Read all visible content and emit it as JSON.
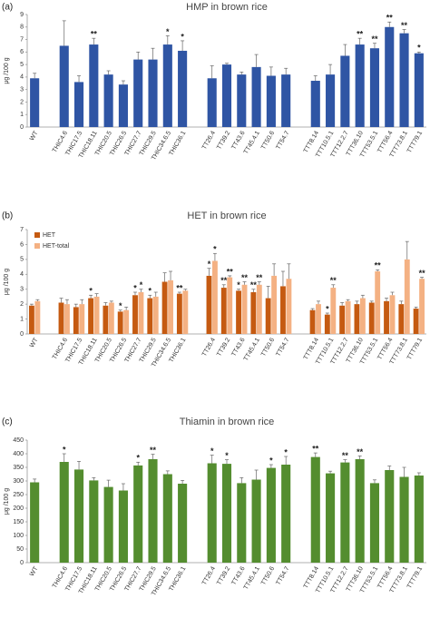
{
  "chart_data": [
    {
      "type": "bar",
      "panel": "(a)",
      "title": "HMP in brown rice",
      "y_label": "μg /100 g",
      "categories": [
        "WT",
        null,
        "THIC4.6",
        "THIC17.5",
        "THIC18.11",
        "THIC20.5",
        "THIC26.5",
        "THIC27.7",
        "THIC29.5",
        "THIC34.6.5",
        "THIC36.1",
        null,
        "TT26.4",
        "TT39.2",
        "TT43.6",
        "TT45.4.1",
        "TT50.6",
        "TT54.7",
        null,
        "TTT8.14",
        "TTT10.5.1",
        "TTT12.2.7",
        "TTT36.10",
        "TTT53.5.1",
        "TTT56.4",
        "TTT73.8.1",
        "TTT79.1"
      ],
      "values": [
        3.9,
        null,
        6.5,
        3.6,
        6.6,
        4.2,
        3.4,
        5.4,
        5.4,
        6.6,
        6.1,
        null,
        3.9,
        5.0,
        4.2,
        4.8,
        4.1,
        4.2,
        null,
        3.7,
        4.2,
        5.7,
        6.6,
        6.3,
        8.0,
        7.5,
        5.9
      ],
      "errors": [
        0.4,
        null,
        2.0,
        0.5,
        0.5,
        0.3,
        0.3,
        0.6,
        0.9,
        0.7,
        0.8,
        null,
        1.0,
        0.1,
        0.2,
        1.0,
        0.7,
        0.5,
        null,
        0.4,
        0.8,
        0.9,
        0.5,
        0.4,
        0.4,
        0.3,
        0.1
      ],
      "significance": [
        null,
        null,
        null,
        null,
        "**",
        null,
        null,
        null,
        null,
        "*",
        "*",
        null,
        null,
        null,
        null,
        null,
        null,
        null,
        null,
        null,
        null,
        null,
        "**",
        "**",
        "**",
        "**",
        "*"
      ],
      "color": "#2f55a4",
      "ylim": [
        0,
        9
      ],
      "yticks": [
        0,
        1,
        2,
        3,
        4,
        5,
        6,
        7,
        8,
        9
      ]
    },
    {
      "type": "bar",
      "panel": "(b)",
      "title": "HET in brown rice",
      "y_label": "μg /100 g",
      "categories": [
        "WT",
        null,
        "THIC4.6",
        "THIC17.5",
        "THIC18.11",
        "THIC20.5",
        "THIC26.5",
        "THIC27.7",
        "THIC29.5",
        "THIC34.6.5",
        "THIC36.1",
        null,
        "TT26.4",
        "TT39.2",
        "TT43.6",
        "TT45.4.1",
        "TT50.6",
        "TT54.7",
        null,
        "TTT8.14",
        "TTT10.5.1",
        "TTT12.2.7",
        "TTT36.10",
        "TTT53.5.1",
        "TTT56.4",
        "TTT73.8.1",
        "TTT79.1"
      ],
      "series": [
        {
          "name": "HET",
          "color": "#c55a11",
          "values": [
            1.9,
            null,
            2.1,
            1.8,
            2.4,
            1.9,
            1.5,
            2.6,
            2.4,
            3.5,
            2.7,
            null,
            3.9,
            3.1,
            2.9,
            2.8,
            2.4,
            3.2,
            null,
            1.6,
            1.3,
            1.9,
            2.0,
            2.1,
            2.2,
            2.0,
            1.7
          ],
          "errors": [
            0.1,
            null,
            0.3,
            0.2,
            0.2,
            0.2,
            0.1,
            0.2,
            0.2,
            0.6,
            0.1,
            null,
            0.5,
            0.2,
            0.1,
            0.2,
            0.8,
            1.0,
            null,
            0.1,
            0.1,
            0.2,
            0.2,
            0.1,
            0.2,
            0.2,
            0.1
          ],
          "significance": [
            null,
            null,
            null,
            null,
            "*",
            null,
            "*",
            "*",
            "*",
            null,
            "**",
            null,
            "*",
            "**",
            "*",
            "**",
            null,
            null,
            null,
            null,
            "*",
            null,
            null,
            null,
            null,
            null,
            null
          ]
        },
        {
          "name": "HET-total",
          "color": "#f4b183",
          "values": [
            2.2,
            null,
            2.0,
            2.0,
            2.5,
            2.1,
            1.6,
            2.8,
            2.5,
            3.6,
            2.9,
            null,
            4.9,
            3.8,
            3.3,
            3.3,
            3.9,
            3.7,
            null,
            2.0,
            3.1,
            2.2,
            2.4,
            4.2,
            2.6,
            5.0,
            3.7
          ],
          "errors": [
            0.1,
            null,
            0.3,
            0.3,
            0.2,
            0.1,
            0.2,
            0.2,
            0.3,
            0.6,
            0.1,
            null,
            0.5,
            0.1,
            0.2,
            0.2,
            0.8,
            1.0,
            null,
            0.2,
            0.2,
            0.1,
            0.2,
            0.1,
            0.2,
            1.2,
            0.1
          ],
          "significance": [
            null,
            null,
            null,
            null,
            null,
            null,
            null,
            "*",
            null,
            null,
            null,
            null,
            "*",
            "**",
            "**",
            "**",
            null,
            null,
            null,
            null,
            "**",
            null,
            null,
            "**",
            null,
            null,
            "**"
          ]
        }
      ],
      "legend": "upper left",
      "ylim": [
        0,
        7
      ],
      "yticks": [
        0,
        1,
        2,
        3,
        4,
        5,
        6,
        7
      ]
    },
    {
      "type": "bar",
      "panel": "(c)",
      "title": "Thiamin in brown rice",
      "y_label": "μg /100 g",
      "categories": [
        "WT",
        null,
        "THIC4.6",
        "THIC17.5",
        "THIC18.11",
        "THIC20.5",
        "THIC26.5",
        "THIC27.7",
        "THIC29.5",
        "THIC34.6.5",
        "THIC36.1",
        null,
        "TT26.4",
        "TT39.2",
        "TT43.6",
        "TT45.4.1",
        "TT50.6",
        "TT54.7",
        null,
        "TTT8.14",
        "TTT10.5.1",
        "TTT12.2.7",
        "TTT36.10",
        "TTT53.5.1",
        "TTT56.4",
        "TTT73.8.1",
        "TTT79.1"
      ],
      "values": [
        295,
        null,
        370,
        342,
        302,
        278,
        265,
        357,
        380,
        325,
        290,
        null,
        365,
        363,
        292,
        305,
        348,
        360,
        null,
        388,
        328,
        368,
        380,
        292,
        340,
        315,
        320
      ],
      "errors": [
        12,
        null,
        30,
        30,
        10,
        25,
        25,
        12,
        18,
        12,
        12,
        null,
        30,
        15,
        20,
        35,
        12,
        30,
        null,
        15,
        8,
        10,
        12,
        12,
        15,
        35,
        10
      ],
      "significance": [
        null,
        null,
        "*",
        null,
        null,
        null,
        null,
        "*",
        "**",
        null,
        null,
        null,
        "*",
        "*",
        null,
        null,
        "*",
        "*",
        null,
        "**",
        null,
        "**",
        "**",
        null,
        null,
        null,
        null
      ],
      "color": "#548d2f",
      "ylim": [
        0,
        450
      ],
      "yticks": [
        0,
        50,
        100,
        150,
        200,
        250,
        300,
        350,
        400,
        450
      ]
    }
  ]
}
